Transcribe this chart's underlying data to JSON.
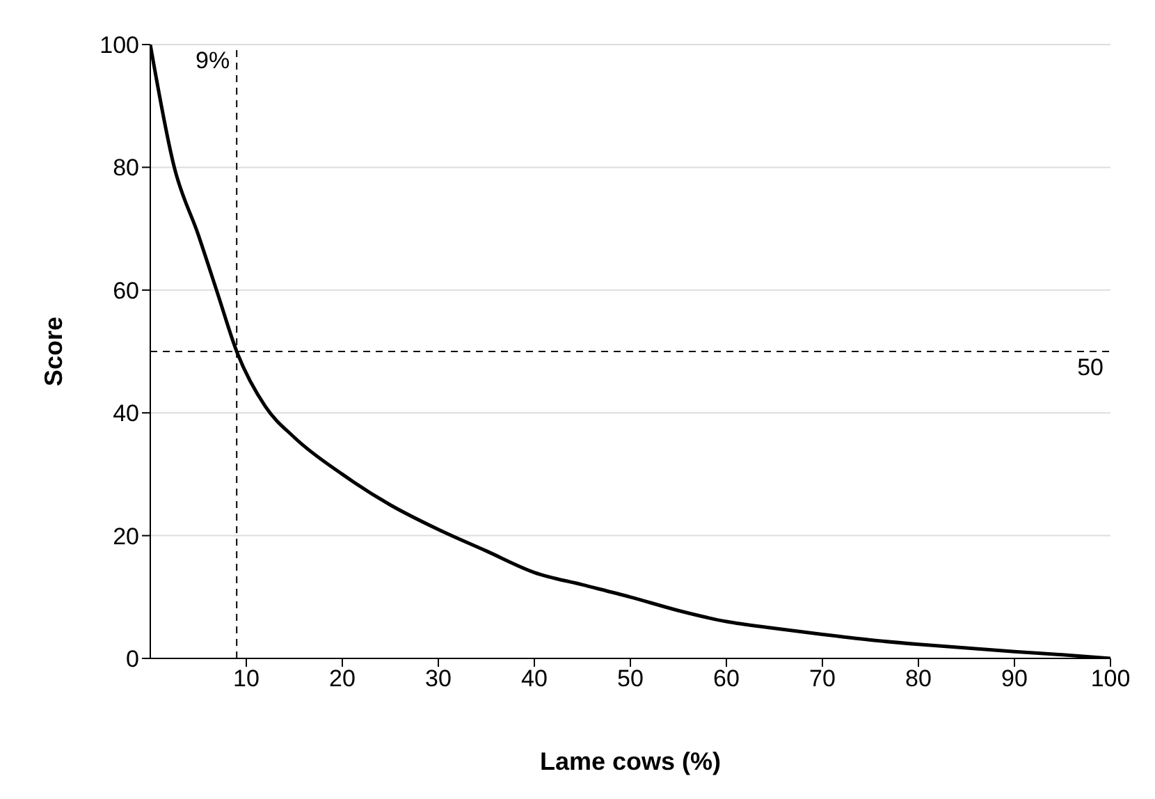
{
  "chart_data": {
    "type": "line",
    "xlabel": "Lame cows (%)",
    "ylabel": "Score",
    "series": [
      {
        "color": "#000000",
        "x": [
          0,
          2.5,
          5,
          7,
          9,
          12,
          15,
          20,
          25,
          30,
          35,
          40,
          45,
          50,
          55,
          60,
          65,
          70,
          75,
          80,
          85,
          90,
          95,
          100
        ],
        "values": [
          100,
          80,
          69,
          59.5,
          50,
          41,
          36,
          30,
          25,
          21,
          17.5,
          14,
          12,
          10,
          7.8,
          6,
          4.9,
          3.9,
          3,
          2.3,
          1.7,
          1.1,
          0.6,
          0
        ]
      }
    ],
    "xlim": [
      0,
      100
    ],
    "xticks": [
      10,
      20,
      30,
      40,
      50,
      60,
      70,
      80,
      90,
      100
    ],
    "ylim": [
      0,
      100
    ],
    "yticks": [
      0,
      20,
      40,
      60,
      80,
      100
    ],
    "grid": "y",
    "marker": "none",
    "line_style": "solid",
    "legend": false,
    "ref_lines": [
      {
        "axis": "x",
        "value": 9,
        "label": "9%",
        "color": "#000000",
        "line_style": "dashed"
      },
      {
        "axis": "y",
        "value": 50,
        "label": "50",
        "color": "#000000",
        "line_style": "dashed"
      }
    ]
  }
}
